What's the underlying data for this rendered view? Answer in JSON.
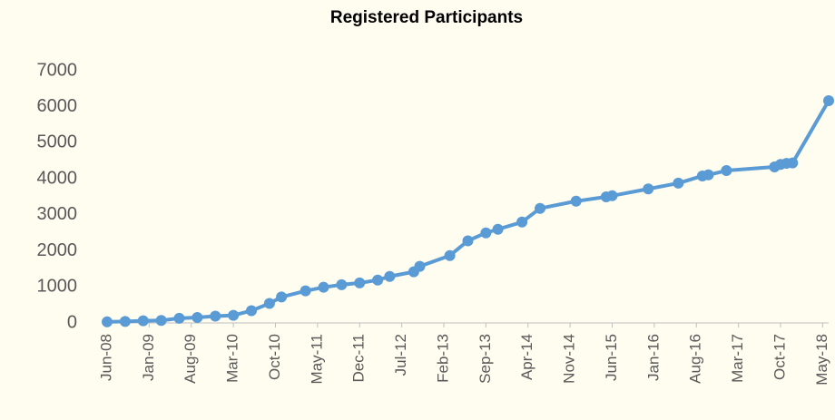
{
  "chart_data": {
    "type": "line",
    "title": "Registered Participants",
    "x": [
      "2008-06",
      "2008-09",
      "2008-12",
      "2009-03",
      "2009-06",
      "2009-09",
      "2009-12",
      "2010-03",
      "2010-06",
      "2010-09",
      "2010-11",
      "2011-03",
      "2011-06",
      "2011-09",
      "2011-12",
      "2012-03",
      "2012-05",
      "2012-09",
      "2012-10",
      "2013-03",
      "2013-06",
      "2013-09",
      "2013-11",
      "2014-03",
      "2014-06",
      "2014-12",
      "2015-05",
      "2015-06",
      "2015-12",
      "2016-05",
      "2016-09",
      "2016-10",
      "2017-01",
      "2017-09",
      "2017-10",
      "2017-11",
      "2017-12",
      "2018-06"
    ],
    "series": [
      {
        "name": "Registered Participants",
        "color": "#5b9bd5",
        "values": [
          30,
          40,
          60,
          70,
          130,
          150,
          190,
          210,
          340,
          540,
          720,
          890,
          990,
          1060,
          1110,
          1190,
          1290,
          1420,
          1570,
          1870,
          2280,
          2500,
          2600,
          2800,
          3180,
          3380,
          3500,
          3530,
          3720,
          3880,
          4080,
          4110,
          4230,
          4330,
          4400,
          4430,
          4440,
          6170
        ]
      }
    ],
    "xlim": [
      "2008-06",
      "2018-06"
    ],
    "xticks": [
      {
        "value": "2008-06",
        "label": "Jun-08"
      },
      {
        "value": "2009-01",
        "label": "Jan-09"
      },
      {
        "value": "2009-08",
        "label": "Aug-09"
      },
      {
        "value": "2010-03",
        "label": "Mar-10"
      },
      {
        "value": "2010-10",
        "label": "Oct-10"
      },
      {
        "value": "2011-05",
        "label": "May-11"
      },
      {
        "value": "2011-12",
        "label": "Dec-11"
      },
      {
        "value": "2012-07",
        "label": "Jul-12"
      },
      {
        "value": "2013-02",
        "label": "Feb-13"
      },
      {
        "value": "2013-09",
        "label": "Sep-13"
      },
      {
        "value": "2014-04",
        "label": "Apr-14"
      },
      {
        "value": "2014-11",
        "label": "Nov-14"
      },
      {
        "value": "2015-06",
        "label": "Jun-15"
      },
      {
        "value": "2016-01",
        "label": "Jan-16"
      },
      {
        "value": "2016-08",
        "label": "Aug-16"
      },
      {
        "value": "2017-03",
        "label": "Mar-17"
      },
      {
        "value": "2017-10",
        "label": "Oct-17"
      },
      {
        "value": "2018-05",
        "label": "May-18"
      }
    ],
    "ylim": [
      0,
      7000
    ],
    "yticks": [
      0,
      1000,
      2000,
      3000,
      4000,
      5000,
      6000,
      7000
    ],
    "grid": false
  }
}
